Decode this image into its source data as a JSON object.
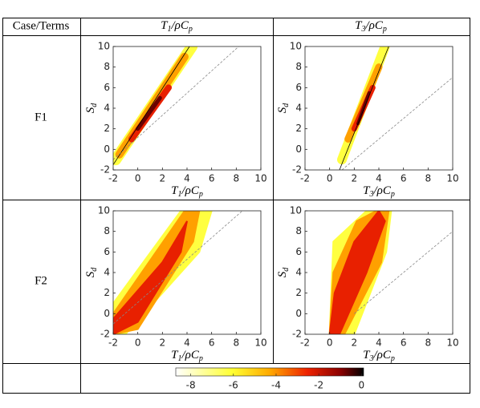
{
  "header": {
    "case": "Case/Terms",
    "columns": [
      [
        "T",
        "1",
        "/ρC",
        "p"
      ],
      [
        "T",
        "3",
        "/ρC",
        "p"
      ]
    ]
  },
  "rows": [
    "F1",
    "F2"
  ],
  "axes": {
    "xlim": [
      -2,
      10
    ],
    "ylim": [
      -2,
      10
    ],
    "xticks": [
      -2,
      0,
      2,
      4,
      6,
      8,
      10
    ],
    "yticks": [
      -2,
      0,
      2,
      4,
      6,
      8,
      10
    ],
    "ylabel": [
      "S",
      "d"
    ],
    "xlabels": [
      [
        "T",
        "1",
        "/ρC",
        "p"
      ],
      [
        "T",
        "3",
        "/ρC",
        "p"
      ]
    ]
  },
  "colorbar": {
    "lim": [
      -8.7,
      0.1
    ],
    "ticks": [
      -8,
      -6,
      -4,
      -2,
      0
    ]
  }
}
